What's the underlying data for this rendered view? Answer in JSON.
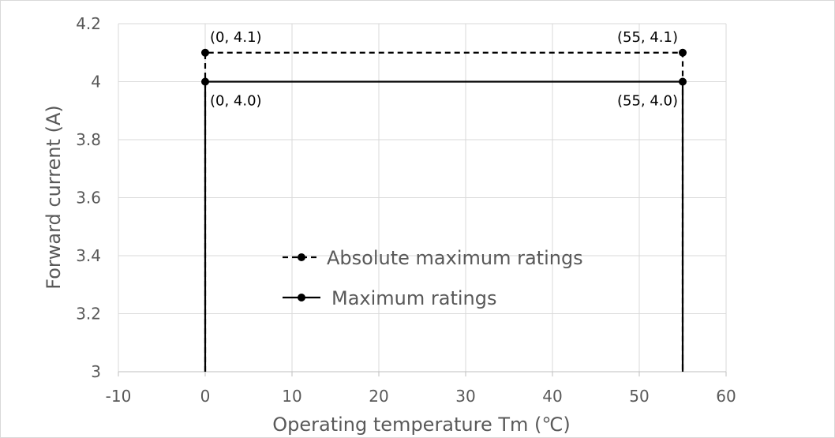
{
  "chart_data": {
    "type": "line",
    "xlabel": "Operating temperature Tm (℃)",
    "ylabel": "Forward current (A)",
    "xlim": [
      -10,
      60
    ],
    "ylim": [
      3,
      4.2
    ],
    "xticks": [
      -10,
      0,
      10,
      20,
      30,
      40,
      50,
      60
    ],
    "yticks": [
      3,
      3.2,
      3.4,
      3.6,
      3.8,
      4,
      4.2
    ],
    "ytick_labels": [
      "3",
      "3.2",
      "3.4",
      "3.6",
      "3.8",
      "4",
      "4.2"
    ],
    "grid": true,
    "legend_position": "center",
    "series": [
      {
        "name": "Absolute maximum ratings",
        "style": "dashed",
        "color": "#000000",
        "points": [
          [
            0,
            3
          ],
          [
            0,
            4.1
          ],
          [
            55,
            4.1
          ],
          [
            55,
            3
          ]
        ],
        "markers": [
          [
            0,
            4.1
          ],
          [
            55,
            4.1
          ]
        ]
      },
      {
        "name": "Maximum ratings",
        "style": "solid",
        "color": "#000000",
        "points": [
          [
            0,
            3
          ],
          [
            0,
            4.0
          ],
          [
            55,
            4.0
          ],
          [
            55,
            3
          ]
        ],
        "markers": [
          [
            0,
            4.0
          ],
          [
            55,
            4.0
          ]
        ]
      }
    ],
    "annotations": [
      {
        "text": "(0, 4.1)",
        "x": 0,
        "y": 4.1,
        "anchor": "above-right"
      },
      {
        "text": "(55, 4.1)",
        "x": 55,
        "y": 4.1,
        "anchor": "above-left"
      },
      {
        "text": "(0, 4.0)",
        "x": 0,
        "y": 4.0,
        "anchor": "below-right"
      },
      {
        "text": "(55, 4.0)",
        "x": 55,
        "y": 4.0,
        "anchor": "below-left"
      }
    ]
  }
}
